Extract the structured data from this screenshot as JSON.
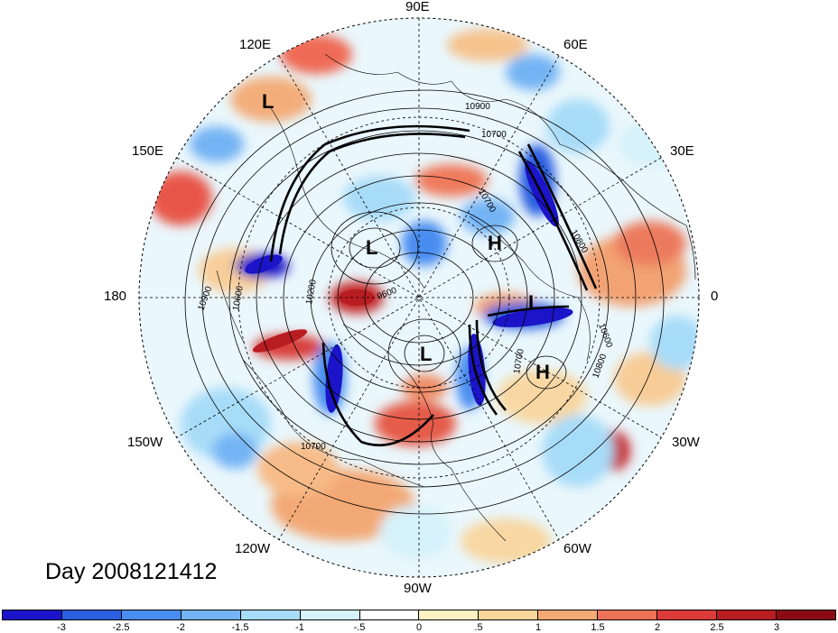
{
  "date_label": "Day 2008121412",
  "longitude_labels": {
    "lon_90e": "90E",
    "lon_120e": "120E",
    "lon_60e": "60E",
    "lon_150e": "150E",
    "lon_30e": "30E",
    "lon_180": "180",
    "lon_0": "0",
    "lon_150w": "150W",
    "lon_30w": "30W",
    "lon_120w": "120W",
    "lon_60w": "60W",
    "lon_90w": "90W"
  },
  "pressure_centers": [
    "L",
    "L",
    "H",
    "L",
    "H",
    "L"
  ],
  "contour_labels": [
    "10900",
    "10700",
    "10800",
    "10700",
    "10600",
    "9600",
    "10900",
    "10600",
    "10200",
    "10700",
    "10800",
    "10700"
  ],
  "colorbar": {
    "ticks": [
      "-3",
      "-2.5",
      "-2",
      "-1.5",
      "-1",
      "-.5",
      "0",
      ".5",
      "1",
      "1.5",
      "2",
      "2.5",
      "3"
    ],
    "colors": [
      "#1b14c8",
      "#2a5fe0",
      "#4a8df0",
      "#74b4f4",
      "#a7dcf8",
      "#d6f2fb",
      "#ffffff",
      "#fbf1c3",
      "#f8d59a",
      "#f2a973",
      "#ec7358",
      "#db3c3a",
      "#b81d22",
      "#8a0b14"
    ]
  }
}
